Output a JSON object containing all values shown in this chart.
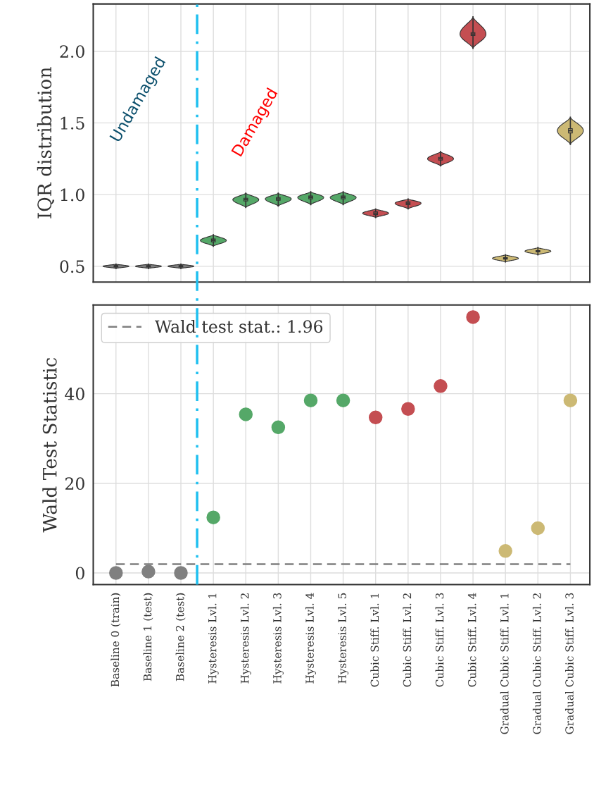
{
  "chart_data": [
    {
      "type": "box",
      "ylabel": "IQR distribution",
      "boxes": [
        {
          "low": 0.485,
          "q1": 0.495,
          "median": 0.5,
          "q3": 0.505,
          "high": 0.515
        },
        {
          "low": 0.485,
          "q1": 0.495,
          "median": 0.5,
          "q3": 0.505,
          "high": 0.515
        },
        {
          "low": 0.485,
          "q1": 0.495,
          "median": 0.5,
          "q3": 0.505,
          "high": 0.515
        },
        {
          "low": 0.64,
          "q1": 0.67,
          "median": 0.68,
          "q3": 0.69,
          "high": 0.72
        },
        {
          "low": 0.91,
          "q1": 0.955,
          "median": 0.965,
          "q3": 0.975,
          "high": 1.01
        },
        {
          "low": 0.92,
          "q1": 0.96,
          "median": 0.97,
          "q3": 0.98,
          "high": 1.01
        },
        {
          "low": 0.93,
          "q1": 0.97,
          "median": 0.98,
          "q3": 0.99,
          "high": 1.02
        },
        {
          "low": 0.93,
          "q1": 0.97,
          "median": 0.98,
          "q3": 0.99,
          "high": 1.02
        },
        {
          "low": 0.84,
          "q1": 0.86,
          "median": 0.87,
          "q3": 0.88,
          "high": 0.9
        },
        {
          "low": 0.9,
          "q1": 0.93,
          "median": 0.94,
          "q3": 0.95,
          "high": 0.97
        },
        {
          "low": 1.2,
          "q1": 1.24,
          "median": 1.25,
          "q3": 1.26,
          "high": 1.3
        },
        {
          "low": 2.02,
          "q1": 2.11,
          "median": 2.12,
          "q3": 2.13,
          "high": 2.24
        },
        {
          "low": 0.53,
          "q1": 0.55,
          "median": 0.555,
          "q3": 0.56,
          "high": 0.58
        },
        {
          "low": 0.58,
          "q1": 0.6,
          "median": 0.605,
          "q3": 0.61,
          "high": 0.63
        },
        {
          "low": 1.35,
          "q1": 1.43,
          "median": 1.446,
          "q3": 1.46,
          "high": 1.54
        }
      ],
      "colors": [
        "#808080",
        "#808080",
        "#808080",
        "#55a868",
        "#55a868",
        "#55a868",
        "#55a868",
        "#55a868",
        "#c44e52",
        "#c44e52",
        "#c44e52",
        "#c44e52",
        "#ccb974",
        "#ccb974",
        "#ccb974"
      ],
      "ylim": [
        0.39,
        2.33
      ],
      "yticks": [
        0.5,
        {
          "value": 1.0,
          "label": "1.0"
        },
        1.5,
        {
          "value": 2.0,
          "label": "2.0"
        }
      ],
      "grid": true,
      "tick_labels": "y",
      "annotations": [
        "Undamaged",
        "Damaged"
      ]
    },
    {
      "type": "scatter",
      "ylabel": "Wald Test Statistic",
      "categories": [
        "Baseline 0 (train)",
        "Baseline 1 (test)",
        "Baseline 2 (test)",
        "Hysteresis Lvl. 1",
        "Hysteresis Lvl. 2",
        "Hysteresis Lvl. 3",
        "Hysteresis Lvl. 4",
        "Hysteresis Lvl. 5",
        "Cubic Stiff. Lvl. 1",
        "Cubic Stiff. Lvl. 2",
        "Cubic Stiff. Lvl. 3",
        "Cubic Stiff. Lvl. 4",
        "Gradual Cubic Stiff. Lvl. 1",
        "Gradual Cubic Stiff. Lvl. 2",
        "Gradual Cubic Stiff. Lvl. 3"
      ],
      "values": [
        0,
        0.3,
        0,
        12.4,
        35.4,
        32.5,
        38.5,
        38.5,
        34.7,
        36.6,
        41.7,
        57.1,
        4.9,
        10.0,
        38.5
      ],
      "colors": [
        "#808080",
        "#808080",
        "#808080",
        "#55a868",
        "#55a868",
        "#55a868",
        "#55a868",
        "#55a868",
        "#c44e52",
        "#c44e52",
        "#c44e52",
        "#c44e52",
        "#ccb974",
        "#ccb974",
        "#ccb974"
      ],
      "marker": "circle",
      "ylim": [
        -2.6,
        59.8
      ],
      "yticks": [
        0,
        20,
        40
      ],
      "grid": true,
      "legend": "top left",
      "ref_lines": [
        {
          "axis": "y",
          "value": 1.96,
          "label": "Wald test stat.: 1.96",
          "color": "#808080",
          "line_style": "dashed"
        }
      ]
    }
  ]
}
